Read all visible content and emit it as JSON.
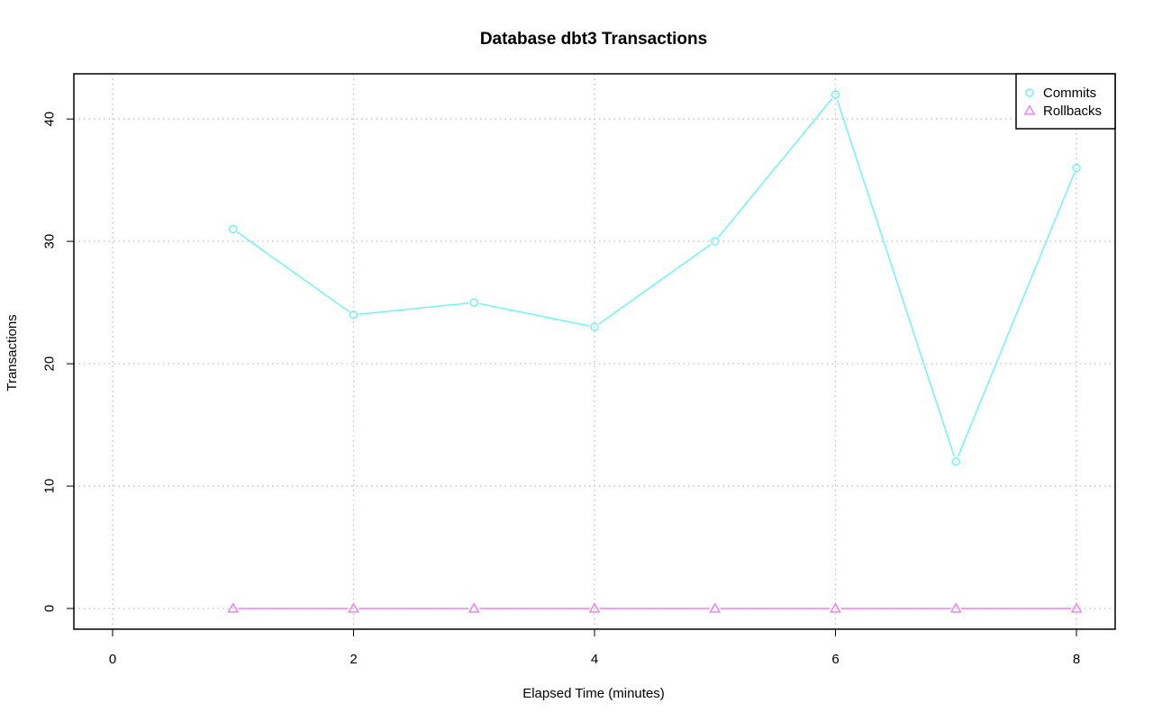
{
  "chart_data": {
    "type": "line",
    "title": "Database dbt3 Transactions",
    "xlabel": "Elapsed Time (minutes)",
    "ylabel": "Transactions",
    "xlim": [
      0,
      8
    ],
    "ylim": [
      0,
      42
    ],
    "x_ticks": [
      0,
      2,
      4,
      6,
      8
    ],
    "y_ticks": [
      0,
      10,
      20,
      30,
      40
    ],
    "grid": true,
    "legend_position": "top-right",
    "x": [
      1,
      2,
      3,
      4,
      5,
      6,
      7,
      8
    ],
    "series": [
      {
        "name": "Commits",
        "marker": "circle",
        "color": "#6ef5f5",
        "values": [
          31,
          24,
          25,
          23,
          30,
          42,
          12,
          36
        ]
      },
      {
        "name": "Rollbacks",
        "marker": "triangle",
        "color": "#ee82ee",
        "values": [
          0,
          0,
          0,
          0,
          0,
          0,
          0,
          0
        ]
      }
    ]
  }
}
